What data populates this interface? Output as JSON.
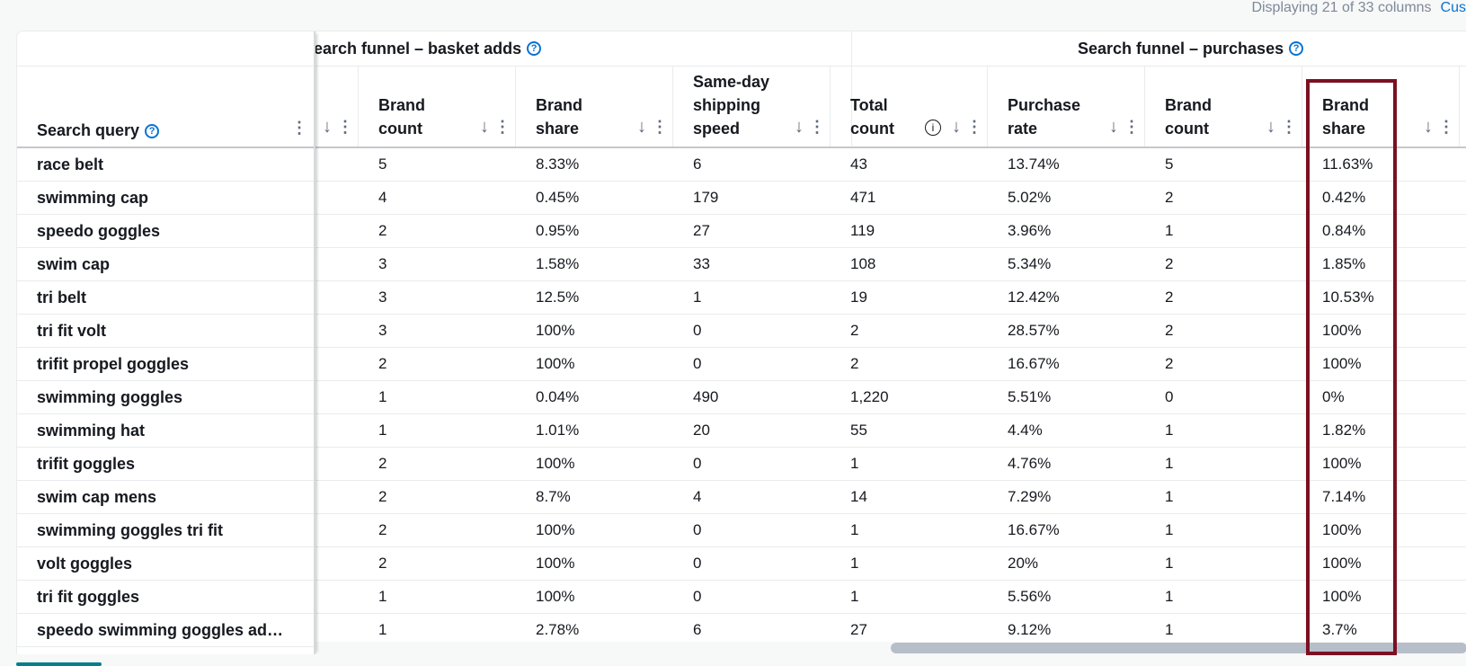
{
  "status": {
    "displaying": "Displaying 21 of 33 columns",
    "customize_label": "Cus"
  },
  "frozen_header": {
    "label": "Search query"
  },
  "groups": {
    "basket_adds": "Search funnel – basket adds",
    "basket_adds_partial": "earch funnel – basket adds",
    "purchases": "Search funnel – purchases"
  },
  "columns": [
    {
      "line1": "Brand",
      "line2": "count"
    },
    {
      "line1": "Brand",
      "line2": "share"
    },
    {
      "line1": "Same-day",
      "line2": "shipping",
      "line3": "speed"
    },
    {
      "line1": "Total",
      "line2": "count"
    },
    {
      "line1": "Purchase",
      "line2": "rate"
    },
    {
      "line1": "Brand",
      "line2": "count"
    },
    {
      "line1": "Brand",
      "line2": "share"
    }
  ],
  "rows": [
    {
      "query": "race belt",
      "c": [
        "5",
        "8.33%",
        "6",
        "43",
        "13.74%",
        "5",
        "11.63%"
      ]
    },
    {
      "query": "swimming cap",
      "c": [
        "4",
        "0.45%",
        "179",
        "471",
        "5.02%",
        "2",
        "0.42%"
      ]
    },
    {
      "query": "speedo goggles",
      "c": [
        "2",
        "0.95%",
        "27",
        "119",
        "3.96%",
        "1",
        "0.84%"
      ]
    },
    {
      "query": "swim cap",
      "c": [
        "3",
        "1.58%",
        "33",
        "108",
        "5.34%",
        "2",
        "1.85%"
      ]
    },
    {
      "query": "tri belt",
      "c": [
        "3",
        "12.5%",
        "1",
        "19",
        "12.42%",
        "2",
        "10.53%"
      ]
    },
    {
      "query": "tri fit volt",
      "c": [
        "3",
        "100%",
        "0",
        "2",
        "28.57%",
        "2",
        "100%"
      ]
    },
    {
      "query": "trifit propel goggles",
      "c": [
        "2",
        "100%",
        "0",
        "2",
        "16.67%",
        "2",
        "100%"
      ]
    },
    {
      "query": "swimming goggles",
      "c": [
        "1",
        "0.04%",
        "490",
        "1,220",
        "5.51%",
        "0",
        "0%"
      ]
    },
    {
      "query": "swimming hat",
      "c": [
        "1",
        "1.01%",
        "20",
        "55",
        "4.4%",
        "1",
        "1.82%"
      ]
    },
    {
      "query": "trifit goggles",
      "c": [
        "2",
        "100%",
        "0",
        "1",
        "4.76%",
        "1",
        "100%"
      ]
    },
    {
      "query": "swim cap mens",
      "c": [
        "2",
        "8.7%",
        "4",
        "14",
        "7.29%",
        "1",
        "7.14%"
      ]
    },
    {
      "query": "swimming goggles tri fit",
      "c": [
        "2",
        "100%",
        "0",
        "1",
        "16.67%",
        "1",
        "100%"
      ]
    },
    {
      "query": "volt goggles",
      "c": [
        "2",
        "100%",
        "0",
        "1",
        "20%",
        "1",
        "100%"
      ]
    },
    {
      "query": "tri fit goggles",
      "c": [
        "1",
        "100%",
        "0",
        "1",
        "5.56%",
        "1",
        "100%"
      ]
    },
    {
      "query": "speedo swimming goggles ad…",
      "c": [
        "1",
        "2.78%",
        "6",
        "27",
        "9.12%",
        "1",
        "3.7%"
      ]
    }
  ],
  "colors": {
    "highlight": "#7b1022",
    "link": "#0972d3",
    "teal": "#037f8c"
  }
}
